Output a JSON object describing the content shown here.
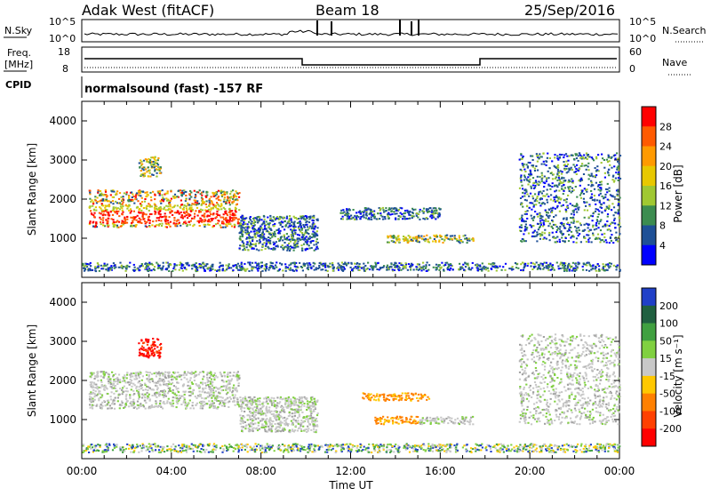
{
  "header": {
    "station": "Adak West (fitACF)",
    "beam": "Beam 18",
    "date": "25/Sep/2016"
  },
  "noise_panel": {
    "left_label": "N.Sky",
    "left_ticks": [
      "10^5",
      "10^0"
    ],
    "right_ticks": [
      "10^5",
      "10^0"
    ],
    "right_label": "N.Search"
  },
  "freq_panel": {
    "left_label": "Freq.",
    "left_unit": "[MHz]",
    "left_ticks": [
      "18",
      "8"
    ],
    "right_ticks": [
      "60",
      "0"
    ],
    "right_label": "Nave"
  },
  "cpid_panel": {
    "label": "CPID",
    "program": "normalsound (fast) -157 RF"
  },
  "chart_data": [
    {
      "type": "heatmap",
      "title": "Power",
      "ylabel": "Slant Range [km]",
      "xlabel": "",
      "x_range_hours": [
        0,
        24
      ],
      "ylim": [
        0,
        4500
      ],
      "y_ticks": [
        "4000",
        "3000",
        "2000",
        "1000"
      ],
      "colorbar_label": "Power [dB]",
      "colorbar_ticks": [
        "28",
        "24",
        "20",
        "16",
        "12",
        "8",
        "4"
      ],
      "colorbar_colors": [
        "#ff0000",
        "#ff5a00",
        "#ff9a00",
        "#e8c800",
        "#a0c832",
        "#3c8c50",
        "#1e5096",
        "#0000ff"
      ],
      "regions": [
        {
          "x": [
            0.3,
            7.0
          ],
          "y": [
            1300,
            2250
          ],
          "level": "strong"
        },
        {
          "x": [
            2.5,
            3.5
          ],
          "y": [
            2600,
            3100
          ],
          "level": "medium"
        },
        {
          "x": [
            7.0,
            10.5
          ],
          "y": [
            700,
            1600
          ],
          "level": "weak"
        },
        {
          "x": [
            11.5,
            16.0
          ],
          "y": [
            1500,
            1800
          ],
          "level": "weak"
        },
        {
          "x": [
            13.5,
            17.5
          ],
          "y": [
            900,
            1100
          ],
          "level": "medium"
        },
        {
          "x": [
            19.5,
            24.0
          ],
          "y": [
            900,
            3200
          ],
          "level": "weak"
        },
        {
          "x": [
            0,
            24
          ],
          "y": [
            180,
            400
          ],
          "level": "weak"
        }
      ]
    },
    {
      "type": "heatmap",
      "title": "Velocity",
      "ylabel": "Slant Range [km]",
      "xlabel": "Time UT",
      "x_ticks": [
        "00:00",
        "04:00",
        "08:00",
        "12:00",
        "16:00",
        "20:00",
        "00:00"
      ],
      "ylim": [
        0,
        4500
      ],
      "y_ticks": [
        "4000",
        "3000",
        "2000",
        "1000"
      ],
      "colorbar_label": "Velocity [m s⁻¹]",
      "colorbar_ticks": [
        "200",
        "100",
        "50",
        "15",
        "-15",
        "-50",
        "-100",
        "-200"
      ],
      "colorbar_colors": [
        "#2040c8",
        "#206040",
        "#40a040",
        "#80d040",
        "#c8c8c8",
        "#ffc800",
        "#ff8000",
        "#ff4000",
        "#ff0000"
      ],
      "regions": [
        {
          "x": [
            0.3,
            7.0
          ],
          "y": [
            1300,
            2250
          ],
          "level": "ground"
        },
        {
          "x": [
            2.5,
            3.5
          ],
          "y": [
            2600,
            3100
          ],
          "level": "negative"
        },
        {
          "x": [
            7.0,
            10.5
          ],
          "y": [
            700,
            1600
          ],
          "level": "ground"
        },
        {
          "x": [
            12.5,
            15.5
          ],
          "y": [
            1500,
            1700
          ],
          "level": "away"
        },
        {
          "x": [
            13.0,
            15.0
          ],
          "y": [
            900,
            1100
          ],
          "level": "away"
        },
        {
          "x": [
            15.0,
            17.5
          ],
          "y": [
            900,
            1100
          ],
          "level": "ground"
        },
        {
          "x": [
            19.5,
            24.0
          ],
          "y": [
            900,
            3200
          ],
          "level": "ground"
        },
        {
          "x": [
            0,
            24
          ],
          "y": [
            180,
            400
          ],
          "level": "toward"
        }
      ]
    }
  ]
}
